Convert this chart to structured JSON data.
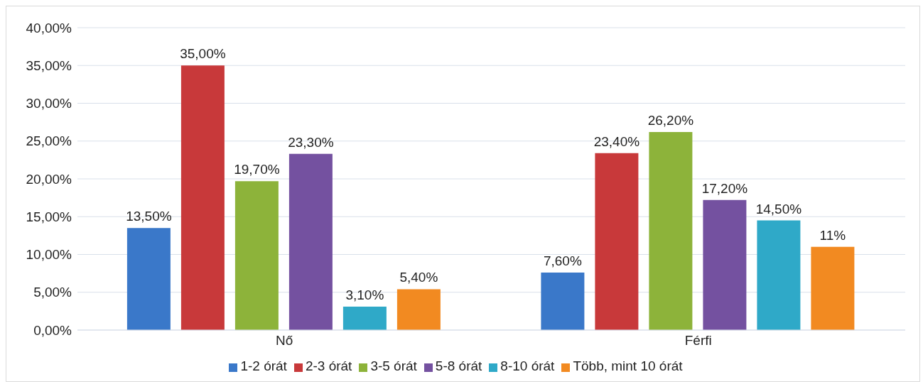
{
  "chart_data": {
    "type": "bar",
    "categories": [
      "Nő",
      "Férfi"
    ],
    "series": [
      {
        "name": "1-2 órát",
        "color": "#3a78c9",
        "values": [
          13.5,
          7.6
        ],
        "value_labels": [
          "13,50%",
          "7,60%"
        ]
      },
      {
        "name": "2-3 órát",
        "color": "#c8393a",
        "values": [
          35,
          23.4
        ],
        "value_labels": [
          "35,00%",
          "23,40%"
        ]
      },
      {
        "name": "3-5 órát",
        "color": "#8db33a",
        "values": [
          19.7,
          26.2
        ],
        "value_labels": [
          "19,70%",
          "26,20%"
        ]
      },
      {
        "name": "5-8 órát",
        "color": "#7451a0",
        "values": [
          23.3,
          17.2
        ],
        "value_labels": [
          "23,30%",
          "17,20%"
        ]
      },
      {
        "name": "8-10 órát",
        "color": "#2fa9c8",
        "values": [
          3.1,
          14.5
        ],
        "value_labels": [
          "3,10%",
          "14,50%"
        ]
      },
      {
        "name": "Több, mint 10 órát",
        "color": "#f28a21",
        "values": [
          5.4,
          11
        ],
        "value_labels": [
          "5,40%",
          "11%"
        ]
      }
    ],
    "ylim": [
      0,
      40
    ],
    "yticks": [
      {
        "value": 0,
        "label": "0,00%"
      },
      {
        "value": 5,
        "label": "5,00%"
      },
      {
        "value": 10,
        "label": "10,00%"
      },
      {
        "value": 15,
        "label": "15,00%"
      },
      {
        "value": 20,
        "label": "20,00%"
      },
      {
        "value": 25,
        "label": "25,00%"
      },
      {
        "value": 30,
        "label": "30,00%"
      },
      {
        "value": 35,
        "label": "35,00%"
      },
      {
        "value": 40,
        "label": "40,00%"
      }
    ],
    "grid": "y",
    "legend": "bottom"
  }
}
